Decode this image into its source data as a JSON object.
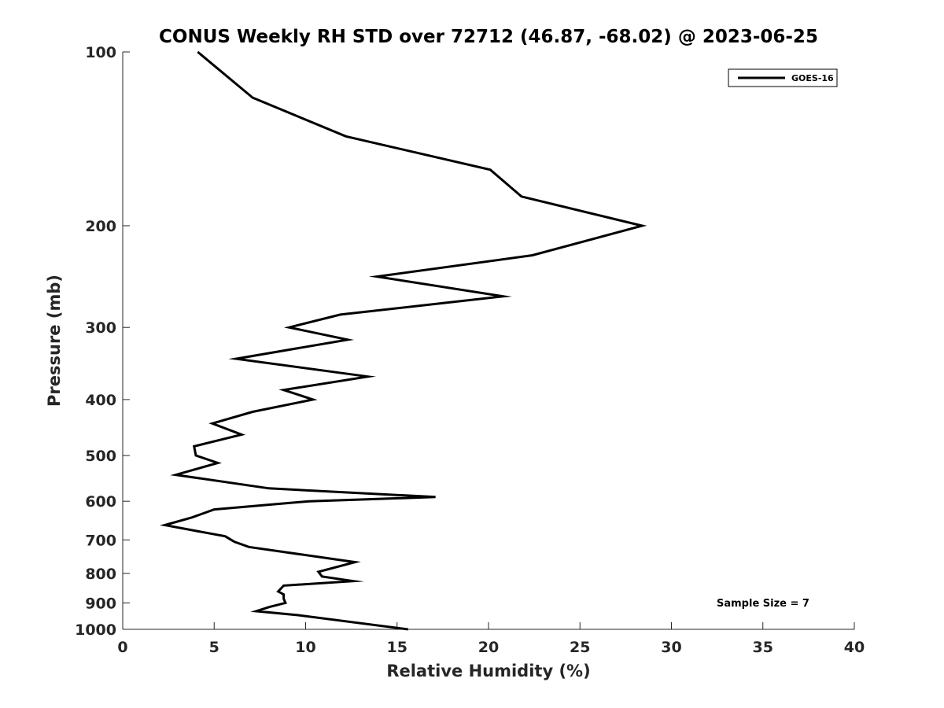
{
  "chart_data": {
    "type": "line",
    "title": "CONUS Weekly RH STD over 72712 (46.87, -68.02) @ 2023-06-25",
    "xlabel": "Relative Humidity (%)",
    "ylabel": "Pressure (mb)",
    "xlim": [
      0,
      40
    ],
    "ylim": [
      100,
      1000
    ],
    "y_scale": "log",
    "y_reversed": true,
    "xticks": [
      0,
      5,
      10,
      15,
      20,
      25,
      30,
      35,
      40
    ],
    "yticks": [
      100,
      200,
      300,
      400,
      500,
      600,
      700,
      800,
      900,
      1000
    ],
    "grid": false,
    "legend_position": "top-right",
    "series": [
      {
        "name": "GOES-16",
        "color": "#000000",
        "points": [
          [
            4.1,
            100
          ],
          [
            7.1,
            120
          ],
          [
            12.2,
            140
          ],
          [
            20.1,
            160
          ],
          [
            21.8,
            178
          ],
          [
            28.4,
            200
          ],
          [
            22.4,
            225
          ],
          [
            13.9,
            245
          ],
          [
            20.8,
            265
          ],
          [
            11.9,
            285
          ],
          [
            9.1,
            300
          ],
          [
            12.3,
            315
          ],
          [
            6.2,
            340
          ],
          [
            13.4,
            365
          ],
          [
            8.8,
            385
          ],
          [
            10.4,
            400
          ],
          [
            7.1,
            420
          ],
          [
            4.9,
            440
          ],
          [
            6.5,
            460
          ],
          [
            3.9,
            482
          ],
          [
            4.0,
            500
          ],
          [
            5.2,
            515
          ],
          [
            2.9,
            540
          ],
          [
            8.0,
            570
          ],
          [
            17.1,
            590
          ],
          [
            10.2,
            600
          ],
          [
            5.0,
            620
          ],
          [
            3.8,
            640
          ],
          [
            2.3,
            660
          ],
          [
            5.6,
            690
          ],
          [
            6.1,
            705
          ],
          [
            6.9,
            720
          ],
          [
            12.7,
            765
          ],
          [
            10.7,
            795
          ],
          [
            10.9,
            810
          ],
          [
            12.6,
            825
          ],
          [
            8.8,
            840
          ],
          [
            8.5,
            860
          ],
          [
            8.8,
            870
          ],
          [
            8.8,
            885
          ],
          [
            8.9,
            900
          ],
          [
            8.0,
            915
          ],
          [
            7.3,
            930
          ],
          [
            9.6,
            945
          ],
          [
            15.6,
            1000
          ]
        ]
      }
    ],
    "annotations": [
      "Sample Size = 7"
    ]
  }
}
